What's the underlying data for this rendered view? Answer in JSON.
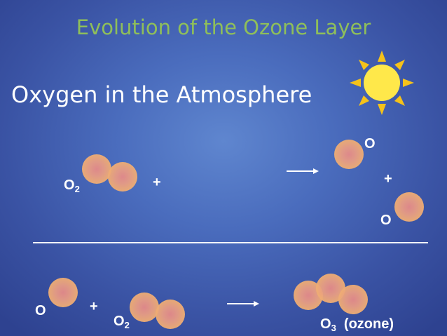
{
  "title": "Evolution of the Ozone Layer",
  "heading": "Oxygen in the Atmosphere",
  "reaction1": {
    "reactant_main": "O",
    "reactant_sub": "2",
    "plus": "+",
    "product_o_top": "O",
    "product_plus": "+",
    "product_o_bottom": "O"
  },
  "reaction2": {
    "reactant_o": "O",
    "plus": "+",
    "reactant2_main": "O",
    "reactant2_sub": "2",
    "product_main": "O",
    "product_sub": "3",
    "product_note": "(ozone)"
  },
  "colors": {
    "title": "#8fbf5a",
    "atom": "#f3b66c",
    "sun": "#ffe84a",
    "sun_rays": "#f5c21a"
  },
  "icons": {
    "sun": "sun-icon",
    "arrow": "right-arrow-icon"
  }
}
